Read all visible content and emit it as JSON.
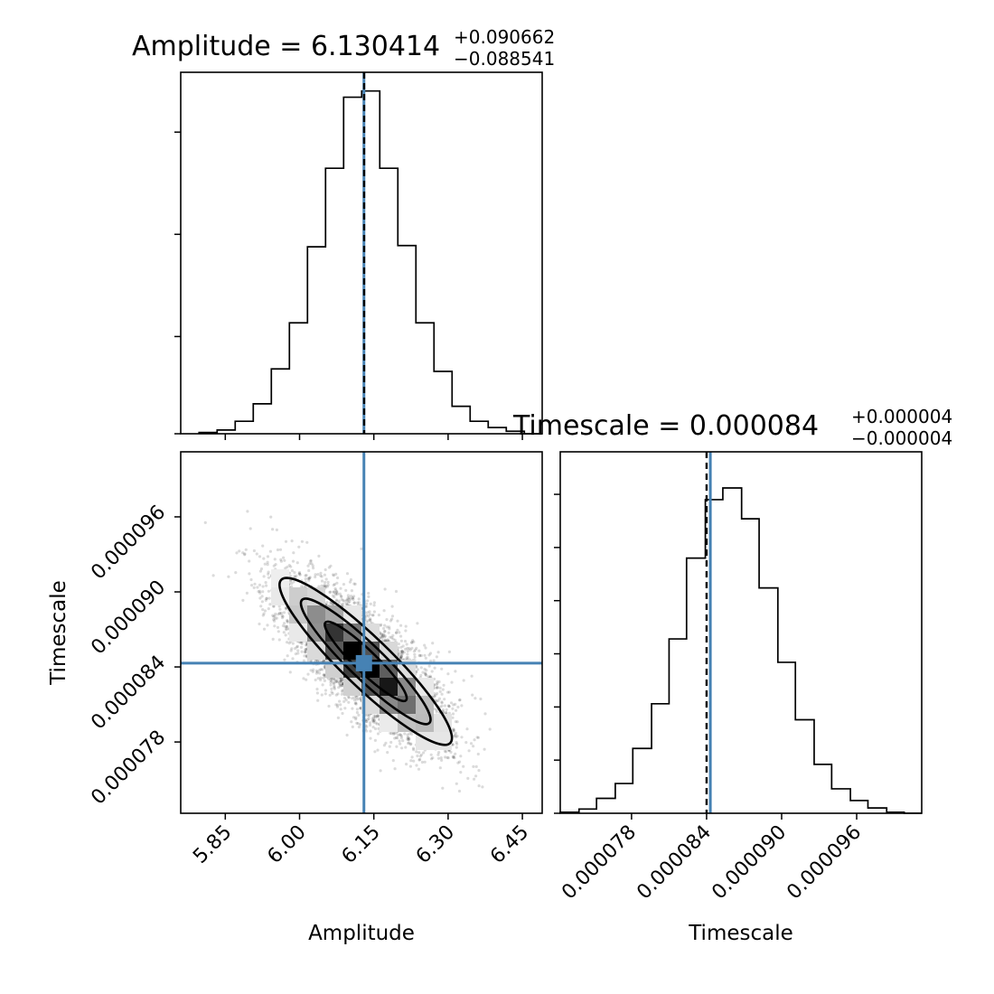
{
  "colors": {
    "truth": "#4682b4",
    "ink": "#000000"
  },
  "chart_data": [
    {
      "type": "histogram",
      "panel": "amplitude-marginal",
      "title": "Amplitude = 6.130414",
      "title_plus": "+0.090662",
      "title_minus": "−0.088541",
      "xlim": [
        5.76,
        6.49
      ],
      "bin_edges": [
        5.797,
        5.8335,
        5.87,
        5.9065,
        5.943,
        5.9795,
        6.016,
        6.0525,
        6.089,
        6.1255,
        6.162,
        6.1985,
        6.235,
        6.2715,
        6.308,
        6.3445,
        6.381,
        6.4175,
        6.454,
        6.4905
      ],
      "counts": [
        1,
        3,
        10,
        24,
        52,
        89,
        150,
        213,
        270,
        275,
        213,
        151,
        89,
        50,
        22,
        10,
        5,
        2,
        0
      ],
      "ylim": [
        0,
        290
      ],
      "median": 6.130414,
      "truth": 6.13,
      "y_ticks": [
        0,
        78,
        160,
        242
      ]
    },
    {
      "type": "histogram",
      "panel": "timescale-marginal",
      "title": "Timescale = 0.000084",
      "title_plus": "+0.000004",
      "title_minus": "−0.000004",
      "xlim": [
        7.23e-05,
        0.0001012
      ],
      "x_ticks": [
        7.8e-05,
        8.4e-05,
        9e-05,
        9.6e-05
      ],
      "x_tick_labels": [
        "0.000078",
        "0.000084",
        "0.000090",
        "0.000096"
      ],
      "xlabel": "Timescale",
      "bin_edges": [
        7.23e-05,
        7.38e-05,
        7.52e-05,
        7.67e-05,
        7.81e-05,
        7.96e-05,
        8.1e-05,
        8.24e-05,
        8.39e-05,
        8.53e-05,
        8.68e-05,
        8.82e-05,
        8.97e-05,
        9.11e-05,
        9.26e-05,
        9.4e-05,
        9.55e-05,
        9.69e-05,
        9.84e-05,
        9.98e-05,
        0.0001012
      ],
      "counts": [
        1,
        4,
        14,
        28,
        61,
        103,
        164,
        240,
        295,
        306,
        277,
        212,
        142,
        88,
        46,
        23,
        12,
        5,
        1,
        0
      ],
      "ylim": [
        0,
        340
      ],
      "median": 8.4e-05,
      "truth": 8.43e-05,
      "y_ticks": [
        0,
        50,
        100,
        150,
        200,
        250,
        300
      ]
    },
    {
      "type": "scatter",
      "panel": "amplitude-timescale-joint",
      "xlim": [
        5.76,
        6.49
      ],
      "ylim": [
        7.23e-05,
        0.0001012
      ],
      "x_ticks": [
        5.85,
        6.0,
        6.15,
        6.3,
        6.45
      ],
      "x_tick_labels": [
        "5.85",
        "6.00",
        "6.15",
        "6.30",
        "6.45"
      ],
      "y_ticks": [
        7.8e-05,
        8.4e-05,
        9e-05,
        9.6e-05
      ],
      "y_tick_labels": [
        "0.000078",
        "0.000084",
        "0.000090",
        "0.000096"
      ],
      "xlabel": "Amplitude",
      "ylabel": "Timescale",
      "truth": [
        6.13,
        8.43e-05
      ],
      "center": [
        6.13,
        8.43e-05
      ],
      "correlation": -0.86
    }
  ]
}
